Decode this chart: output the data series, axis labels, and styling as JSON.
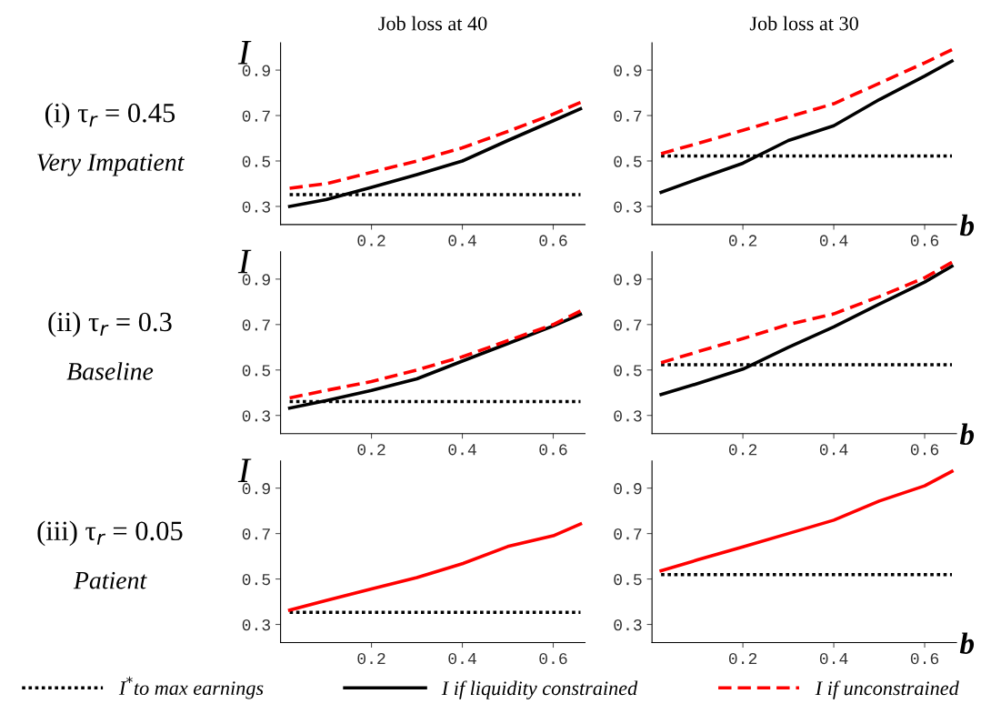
{
  "chart_data": [
    {
      "type": "line",
      "title": "Job loss at 40",
      "ylabel": "I",
      "annotations": [
        "(i) τ$_{r}$ = 0.45",
        "Very Impatient"
      ],
      "x": [
        0.02,
        0.1,
        0.2,
        0.3,
        0.4,
        0.5,
        0.6,
        0.66
      ],
      "xlim": [
        0,
        0.67
      ],
      "ylim": [
        0.22,
        1.02
      ],
      "xticks": [
        0.2,
        0.4,
        0.6
      ],
      "yticks": [
        0.3,
        0.5,
        0.7,
        0.9
      ],
      "legend": "bottom",
      "series": [
        {
          "name": "I$^{*}$to max earnings",
          "color": "#000000",
          "line_style": "dotted",
          "values": [
            0.352,
            0.352,
            0.352,
            0.352,
            0.352,
            0.352,
            0.352,
            0.352
          ]
        },
        {
          "name": "I if liquidity constrained",
          "color": "#000000",
          "line_style": "solid",
          "values": [
            0.3,
            0.33,
            0.384,
            0.44,
            0.5,
            0.59,
            0.677,
            0.73
          ]
        },
        {
          "name": "I if unconstrained",
          "color": "#ff0000",
          "line_style": "dashed",
          "values": [
            0.38,
            0.4,
            0.45,
            0.5,
            0.558,
            0.63,
            0.706,
            0.758
          ]
        }
      ]
    },
    {
      "type": "line",
      "title": "Job loss at 30",
      "xlabel": "b",
      "x": [
        0.02,
        0.1,
        0.2,
        0.3,
        0.4,
        0.5,
        0.6,
        0.66
      ],
      "xlim": [
        0,
        0.67
      ],
      "ylim": [
        0.22,
        1.02
      ],
      "xticks": [
        0.2,
        0.4,
        0.6
      ],
      "yticks": [
        0.3,
        0.5,
        0.7,
        0.9
      ],
      "series": [
        {
          "color": "#000000",
          "line_style": "dotted",
          "values": [
            0.522,
            0.522,
            0.522,
            0.522,
            0.522,
            0.522,
            0.522,
            0.522
          ]
        },
        {
          "color": "#000000",
          "line_style": "solid",
          "values": [
            0.362,
            0.42,
            0.49,
            0.59,
            0.655,
            0.77,
            0.874,
            0.94
          ]
        },
        {
          "color": "#ff0000",
          "line_style": "dashed",
          "values": [
            0.532,
            0.577,
            0.635,
            0.694,
            0.752,
            0.842,
            0.932,
            0.99
          ]
        }
      ]
    },
    {
      "type": "line",
      "ylabel": "I",
      "annotations": [
        "(ii) τ$_{r}$ = 0.3",
        "Baseline"
      ],
      "x": [
        0.02,
        0.1,
        0.2,
        0.3,
        0.4,
        0.5,
        0.6,
        0.66
      ],
      "xlim": [
        0,
        0.67
      ],
      "ylim": [
        0.22,
        1.02
      ],
      "xticks": [
        0.2,
        0.4,
        0.6
      ],
      "yticks": [
        0.3,
        0.5,
        0.7,
        0.9
      ],
      "series": [
        {
          "color": "#000000",
          "line_style": "dotted",
          "values": [
            0.361,
            0.361,
            0.361,
            0.361,
            0.361,
            0.361,
            0.361,
            0.361
          ]
        },
        {
          "color": "#000000",
          "line_style": "solid",
          "values": [
            0.332,
            0.365,
            0.41,
            0.461,
            0.539,
            0.616,
            0.694,
            0.745
          ]
        },
        {
          "color": "#ff0000",
          "line_style": "dashed",
          "values": [
            0.377,
            0.41,
            0.449,
            0.5,
            0.558,
            0.629,
            0.7,
            0.76
          ]
        }
      ]
    },
    {
      "type": "line",
      "xlabel": "b",
      "x": [
        0.02,
        0.1,
        0.2,
        0.3,
        0.4,
        0.5,
        0.6,
        0.66
      ],
      "xlim": [
        0,
        0.67
      ],
      "ylim": [
        0.22,
        1.02
      ],
      "xticks": [
        0.2,
        0.4,
        0.6
      ],
      "yticks": [
        0.3,
        0.5,
        0.7,
        0.9
      ],
      "series": [
        {
          "color": "#000000",
          "line_style": "dotted",
          "values": [
            0.523,
            0.523,
            0.523,
            0.523,
            0.523,
            0.523,
            0.523,
            0.523
          ]
        },
        {
          "color": "#000000",
          "line_style": "solid",
          "values": [
            0.392,
            0.44,
            0.504,
            0.6,
            0.69,
            0.79,
            0.887,
            0.957
          ]
        },
        {
          "color": "#ff0000",
          "line_style": "dashed",
          "values": [
            0.532,
            0.58,
            0.638,
            0.7,
            0.747,
            0.823,
            0.906,
            0.974
          ]
        }
      ]
    },
    {
      "type": "line",
      "ylabel": "I",
      "annotations": [
        "(iii) τ$_{r}$ = 0.05",
        "Patient"
      ],
      "x": [
        0.02,
        0.1,
        0.2,
        0.3,
        0.4,
        0.5,
        0.6,
        0.66
      ],
      "xlim": [
        0,
        0.67
      ],
      "ylim": [
        0.22,
        1.02
      ],
      "xticks": [
        0.2,
        0.4,
        0.6
      ],
      "yticks": [
        0.3,
        0.5,
        0.7,
        0.9
      ],
      "series": [
        {
          "color": "#000000",
          "line_style": "dotted",
          "values": [
            0.353,
            0.353,
            0.353,
            0.353,
            0.353,
            0.353,
            0.353,
            0.353
          ]
        },
        {
          "color": "#ff0000",
          "line_style": "solid",
          "values": [
            0.363,
            0.405,
            0.456,
            0.506,
            0.567,
            0.643,
            0.69,
            0.742
          ]
        }
      ]
    },
    {
      "type": "line",
      "xlabel": "b",
      "x": [
        0.02,
        0.1,
        0.2,
        0.3,
        0.4,
        0.5,
        0.6,
        0.66
      ],
      "xlim": [
        0,
        0.67
      ],
      "ylim": [
        0.22,
        1.02
      ],
      "xticks": [
        0.2,
        0.4,
        0.6
      ],
      "yticks": [
        0.3,
        0.5,
        0.7,
        0.9
      ],
      "series": [
        {
          "color": "#000000",
          "line_style": "dotted",
          "values": [
            0.519,
            0.519,
            0.519,
            0.519,
            0.519,
            0.519,
            0.519,
            0.519
          ]
        },
        {
          "color": "#ff0000",
          "line_style": "solid",
          "values": [
            0.536,
            0.584,
            0.641,
            0.7,
            0.759,
            0.843,
            0.91,
            0.974
          ]
        }
      ]
    }
  ]
}
